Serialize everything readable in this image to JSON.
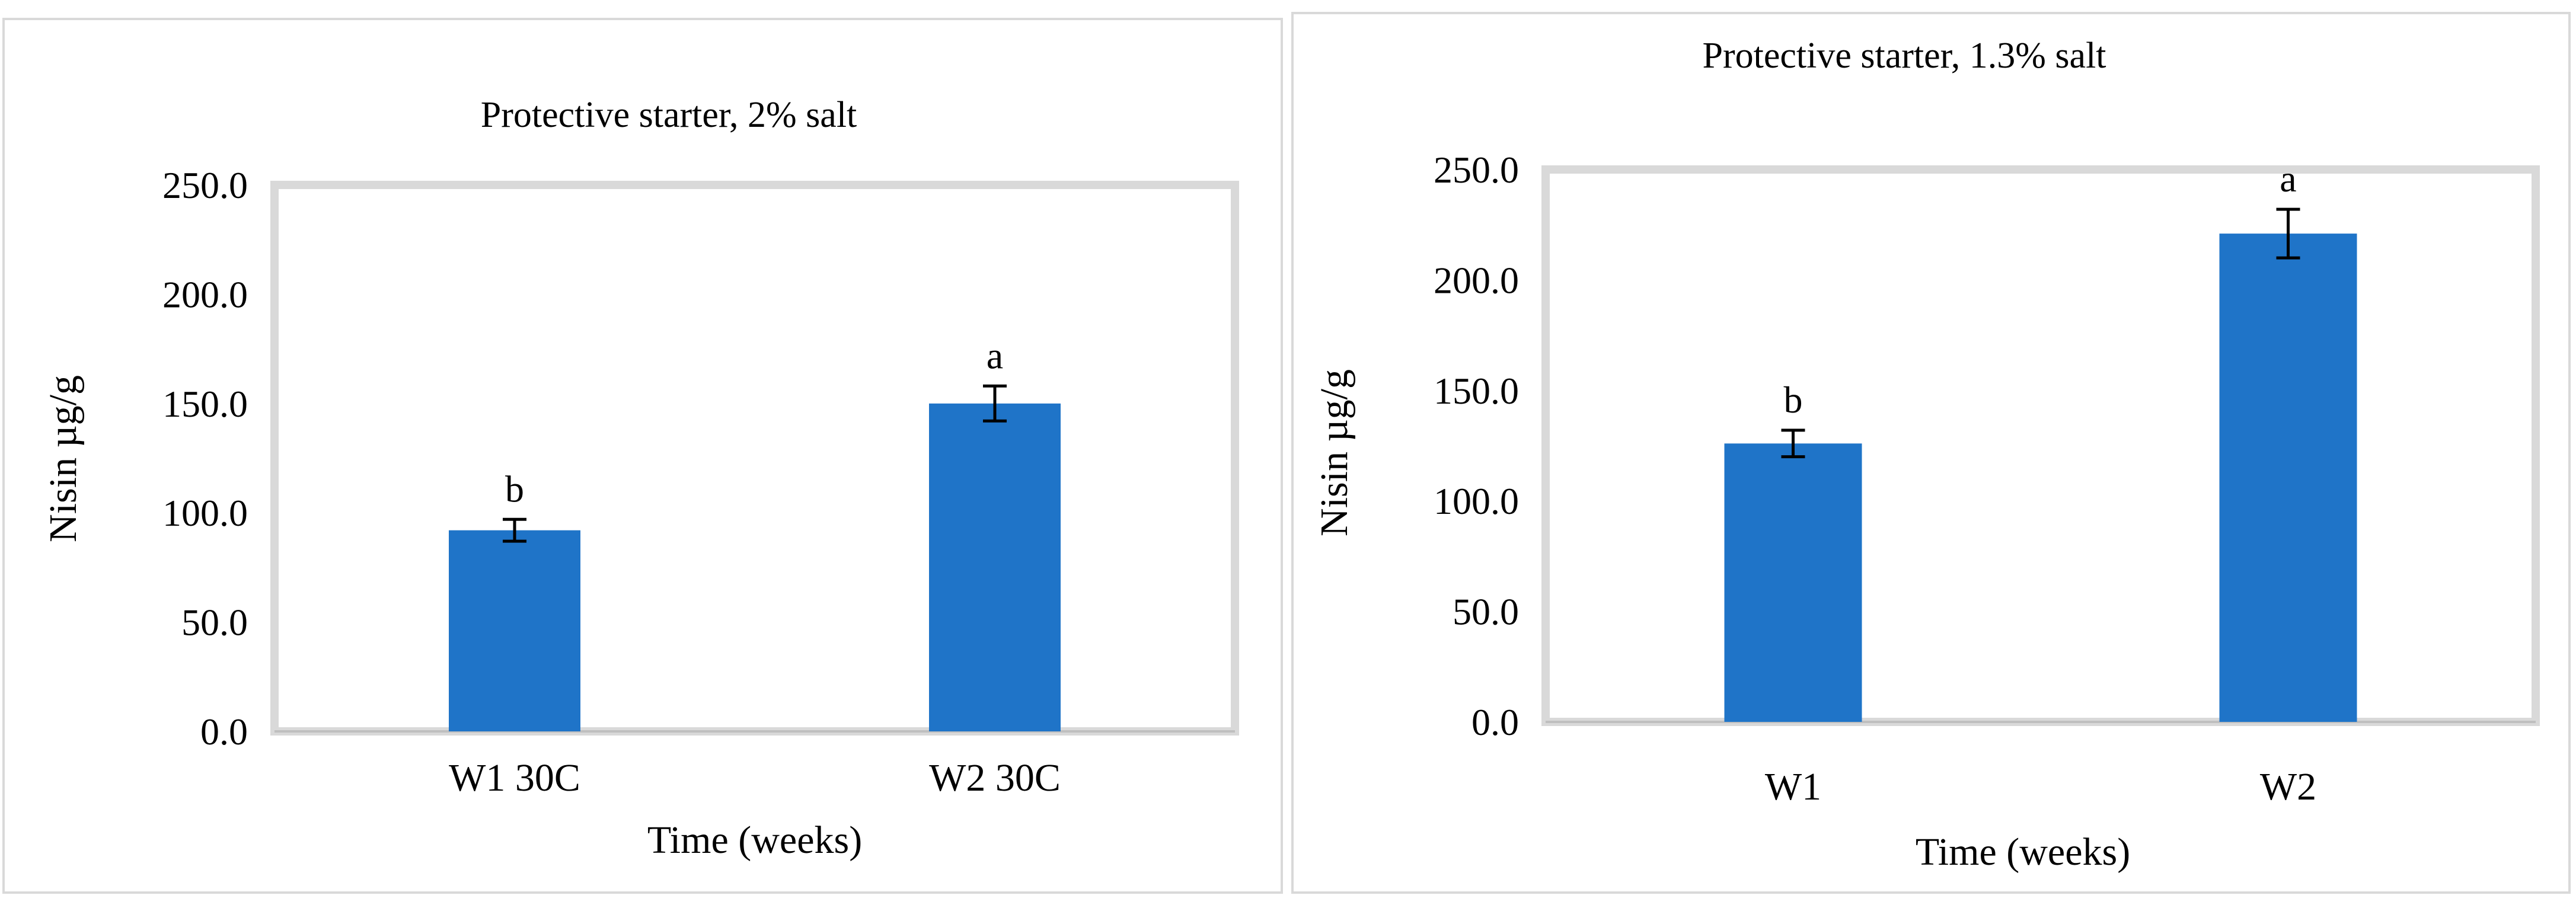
{
  "chart_data": [
    {
      "type": "bar",
      "title": "Protective starter, 2% salt",
      "xlabel": "Time (weeks)",
      "ylabel": "Nisin µg/g",
      "categories": [
        "W1 30C",
        "W2 30C"
      ],
      "values": [
        92,
        150
      ],
      "error": [
        5,
        8
      ],
      "significance_letters": [
        "b",
        "a"
      ],
      "ylim": [
        0,
        250
      ],
      "yticks": [
        "0.0",
        "50.0",
        "100.0",
        "150.0",
        "200.0",
        "250.0"
      ],
      "grid": false,
      "legend": "none",
      "bar_color": "#1f74c8"
    },
    {
      "type": "bar",
      "title": "Protective starter, 1.3% salt",
      "xlabel": "Time (weeks)",
      "ylabel": "Nisin µg/g",
      "categories": [
        "W1",
        "W2"
      ],
      "values": [
        126,
        221
      ],
      "error": [
        6,
        11
      ],
      "significance_letters": [
        "b",
        "a"
      ],
      "ylim": [
        0,
        250
      ],
      "yticks": [
        "0.0",
        "50.0",
        "100.0",
        "150.0",
        "200.0",
        "250.0"
      ],
      "grid": false,
      "legend": "none",
      "bar_color": "#1f74c8"
    }
  ]
}
